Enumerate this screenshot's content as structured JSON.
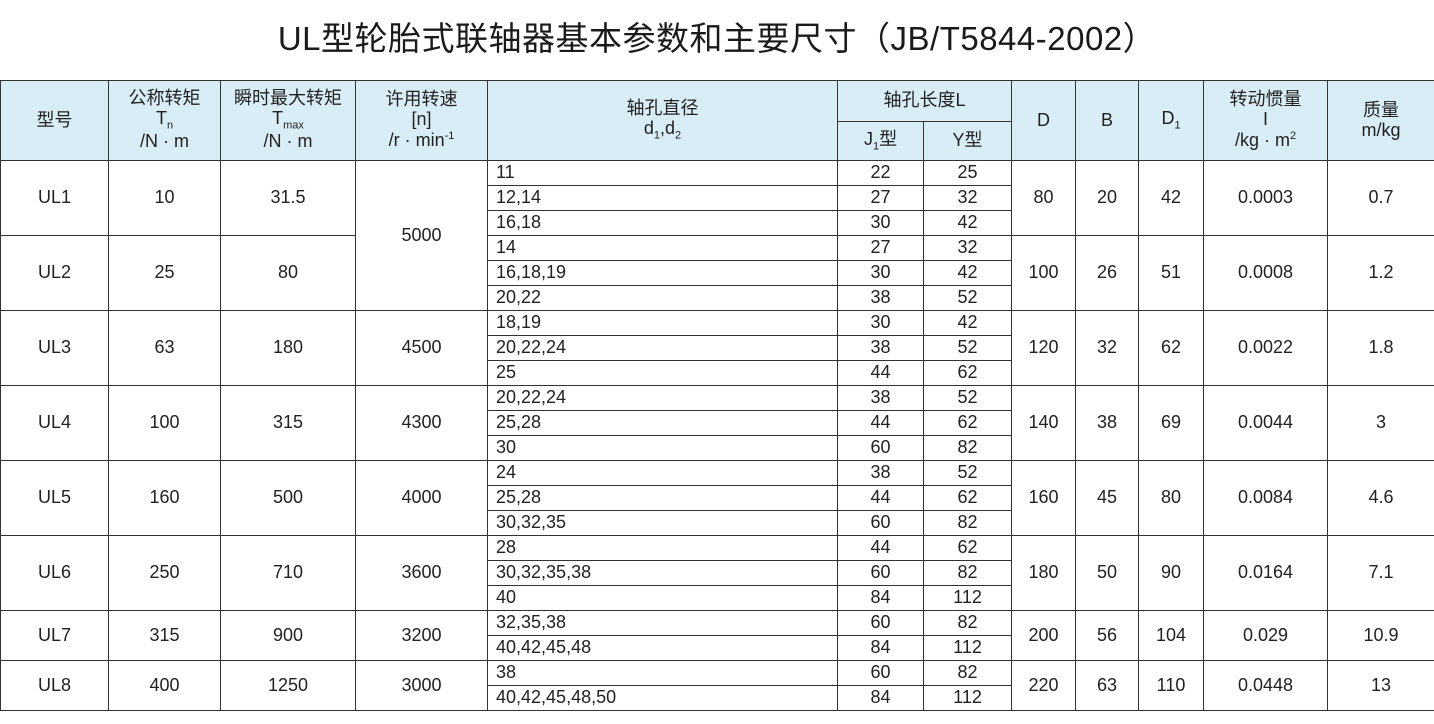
{
  "title": "UL型轮胎式联轴器基本参数和主要尺寸（JB/T5844-2002）",
  "headers": {
    "model": "型号",
    "tn": [
      "公称转矩",
      "T",
      "n",
      "/N · m"
    ],
    "tmax": [
      "瞬时最大转矩",
      "T",
      "max",
      "/N · m"
    ],
    "speed": [
      "许用转速",
      "[n]",
      "/r · min",
      "-1"
    ],
    "bore": [
      "轴孔直径",
      "d",
      "1",
      ",d",
      "2"
    ],
    "length": "轴孔长度L",
    "j1": [
      "J",
      "1",
      "型"
    ],
    "y": "Y型",
    "D": "D",
    "B": "B",
    "D1": [
      "D",
      "1"
    ],
    "inertia": [
      "转动惯量",
      "I",
      "/kg · m",
      "2"
    ],
    "mass": [
      "质量",
      "m/kg"
    ]
  },
  "models": [
    {
      "model": "UL1",
      "tn": "10",
      "tmax": "31.5",
      "speed": "5000",
      "speed_span": 6,
      "D": "80",
      "B": "20",
      "D1": "42",
      "inertia": "0.0003",
      "mass": "0.7",
      "rows": [
        [
          "11",
          "22",
          "25"
        ],
        [
          "12,14",
          "27",
          "32"
        ],
        [
          "16,18",
          "30",
          "42"
        ]
      ]
    },
    {
      "model": "UL2",
      "tn": "25",
      "tmax": "80",
      "speed": null,
      "D": "100",
      "B": "26",
      "D1": "51",
      "inertia": "0.0008",
      "mass": "1.2",
      "rows": [
        [
          "14",
          "27",
          "32"
        ],
        [
          "16,18,19",
          "30",
          "42"
        ],
        [
          "20,22",
          "38",
          "52"
        ]
      ]
    },
    {
      "model": "UL3",
      "tn": "63",
      "tmax": "180",
      "speed": "4500",
      "speed_span": 3,
      "D": "120",
      "B": "32",
      "D1": "62",
      "inertia": "0.0022",
      "mass": "1.8",
      "rows": [
        [
          "18,19",
          "30",
          "42"
        ],
        [
          "20,22,24",
          "38",
          "52"
        ],
        [
          "25",
          "44",
          "62"
        ]
      ]
    },
    {
      "model": "UL4",
      "tn": "100",
      "tmax": "315",
      "speed": "4300",
      "speed_span": 3,
      "D": "140",
      "B": "38",
      "D1": "69",
      "inertia": "0.0044",
      "mass": "3",
      "rows": [
        [
          "20,22,24",
          "38",
          "52"
        ],
        [
          "25,28",
          "44",
          "62"
        ],
        [
          "30",
          "60",
          "82"
        ]
      ]
    },
    {
      "model": "UL5",
      "tn": "160",
      "tmax": "500",
      "speed": "4000",
      "speed_span": 3,
      "D": "160",
      "B": "45",
      "D1": "80",
      "inertia": "0.0084",
      "mass": "4.6",
      "rows": [
        [
          "24",
          "38",
          "52"
        ],
        [
          "25,28",
          "44",
          "62"
        ],
        [
          "30,32,35",
          "60",
          "82"
        ]
      ]
    },
    {
      "model": "UL6",
      "tn": "250",
      "tmax": "710",
      "speed": "3600",
      "speed_span": 3,
      "D": "180",
      "B": "50",
      "D1": "90",
      "inertia": "0.0164",
      "mass": "7.1",
      "rows": [
        [
          "28",
          "44",
          "62"
        ],
        [
          "30,32,35,38",
          "60",
          "82"
        ],
        [
          "40",
          "84",
          "112"
        ]
      ]
    },
    {
      "model": "UL7",
      "tn": "315",
      "tmax": "900",
      "speed": "3200",
      "speed_span": 2,
      "D": "200",
      "B": "56",
      "D1": "104",
      "inertia": "0.029",
      "mass": "10.9",
      "rows": [
        [
          "32,35,38",
          "60",
          "82"
        ],
        [
          "40,42,45,48",
          "84",
          "112"
        ]
      ]
    },
    {
      "model": "UL8",
      "tn": "400",
      "tmax": "1250",
      "speed": "3000",
      "speed_span": 2,
      "D": "220",
      "B": "63",
      "D1": "110",
      "inertia": "0.0448",
      "mass": "13",
      "rows": [
        [
          "38",
          "60",
          "82"
        ],
        [
          "40,42,45,48,50",
          "84",
          "112"
        ]
      ]
    }
  ]
}
